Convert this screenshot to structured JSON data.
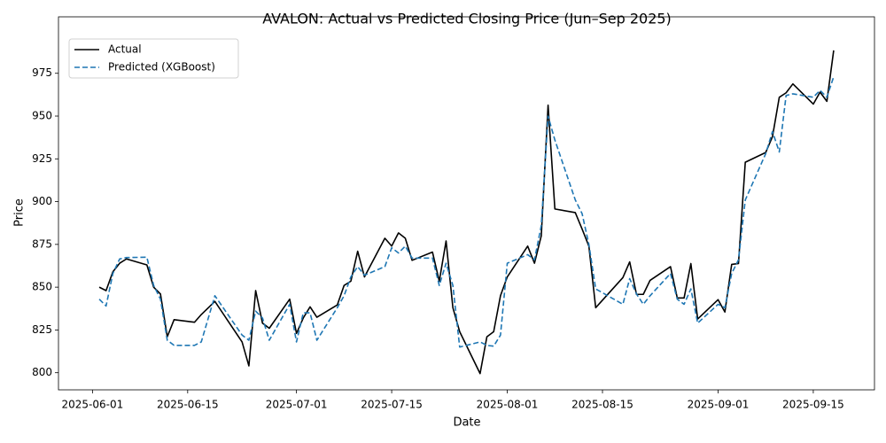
{
  "chart_data": {
    "type": "line",
    "title": "AVALON: Actual vs Predicted Closing Price (Jun–Sep 2025)",
    "xlabel": "Date",
    "ylabel": "Price",
    "x": [
      "2025-06-02",
      "2025-06-03",
      "2025-06-04",
      "2025-06-05",
      "2025-06-06",
      "2025-06-09",
      "2025-06-10",
      "2025-06-11",
      "2025-06-12",
      "2025-06-13",
      "2025-06-16",
      "2025-06-17",
      "2025-06-19",
      "2025-06-23",
      "2025-06-24",
      "2025-06-25",
      "2025-06-26",
      "2025-06-27",
      "2025-06-30",
      "2025-07-01",
      "2025-07-02",
      "2025-07-03",
      "2025-07-04",
      "2025-07-07",
      "2025-07-08",
      "2025-07-09",
      "2025-07-10",
      "2025-07-11",
      "2025-07-14",
      "2025-07-15",
      "2025-07-16",
      "2025-07-17",
      "2025-07-18",
      "2025-07-21",
      "2025-07-22",
      "2025-07-23",
      "2025-07-24",
      "2025-07-25",
      "2025-07-28",
      "2025-07-29",
      "2025-07-30",
      "2025-07-31",
      "2025-08-01",
      "2025-08-04",
      "2025-08-05",
      "2025-08-06",
      "2025-08-07",
      "2025-08-08",
      "2025-08-11",
      "2025-08-12",
      "2025-08-13",
      "2025-08-14",
      "2025-08-18",
      "2025-08-19",
      "2025-08-20",
      "2025-08-21",
      "2025-08-22",
      "2025-08-25",
      "2025-08-26",
      "2025-08-27",
      "2025-08-28",
      "2025-08-29",
      "2025-09-01",
      "2025-09-02",
      "2025-09-03",
      "2025-09-04",
      "2025-09-05",
      "2025-09-08",
      "2025-09-09",
      "2025-09-10",
      "2025-09-11",
      "2025-09-12",
      "2025-09-15",
      "2025-09-16",
      "2025-09-17",
      "2025-09-18"
    ],
    "series": [
      {
        "name": "Actual",
        "color": "#000000",
        "linestyle": "solid",
        "values": [
          850,
          848,
          859,
          864,
          866.5,
          863,
          850,
          846,
          821,
          831,
          829.5,
          834,
          841.7,
          818,
          804,
          848,
          829,
          826,
          843,
          823,
          832,
          838.5,
          832.4,
          839.6,
          851,
          853.5,
          871,
          856,
          878.6,
          874,
          881.7,
          878.6,
          865.7,
          870.5,
          853.5,
          877,
          838,
          824,
          799.5,
          821,
          824,
          845,
          856,
          874,
          864,
          880,
          956.4,
          895.7,
          893.6,
          884,
          874,
          838,
          855.6,
          864.8,
          845.8,
          845.8,
          854,
          862,
          843.7,
          843.7,
          863.8,
          831.4,
          842.7,
          835.5,
          863.3,
          863.8,
          923,
          928.7,
          938,
          961,
          963.6,
          968.8,
          957,
          964,
          958.6,
          988.4
        ]
      },
      {
        "name": "Predicted (XGBoost)",
        "color": "#1f77b4",
        "linestyle": "dashed",
        "values": [
          843,
          839,
          858,
          866.5,
          867.3,
          867.5,
          851,
          843,
          819,
          816,
          816,
          818,
          845,
          822,
          819,
          836,
          832,
          819,
          840,
          818,
          835,
          835,
          819,
          838,
          845,
          856,
          862,
          857,
          862,
          873,
          870,
          874,
          867,
          867,
          851,
          864,
          851,
          815,
          818,
          816,
          815.5,
          822,
          864,
          869,
          866,
          886,
          950,
          936,
          901,
          893,
          875,
          849,
          840,
          855,
          846,
          840,
          845,
          858,
          843,
          840,
          849,
          829,
          840,
          838,
          858,
          866,
          901,
          928,
          941,
          929,
          962,
          963,
          961,
          965,
          961,
          973
        ]
      }
    ],
    "xlim": [
      "2025-05-27",
      "2025-09-24"
    ],
    "xticks": [
      "2025-06-01",
      "2025-06-15",
      "2025-07-01",
      "2025-07-15",
      "2025-08-01",
      "2025-08-15",
      "2025-09-01",
      "2025-09-15"
    ],
    "ylim": [
      790,
      1008
    ],
    "yticks": [
      800,
      825,
      850,
      875,
      900,
      925,
      950,
      975
    ],
    "grid": false,
    "legend": "upper left"
  }
}
